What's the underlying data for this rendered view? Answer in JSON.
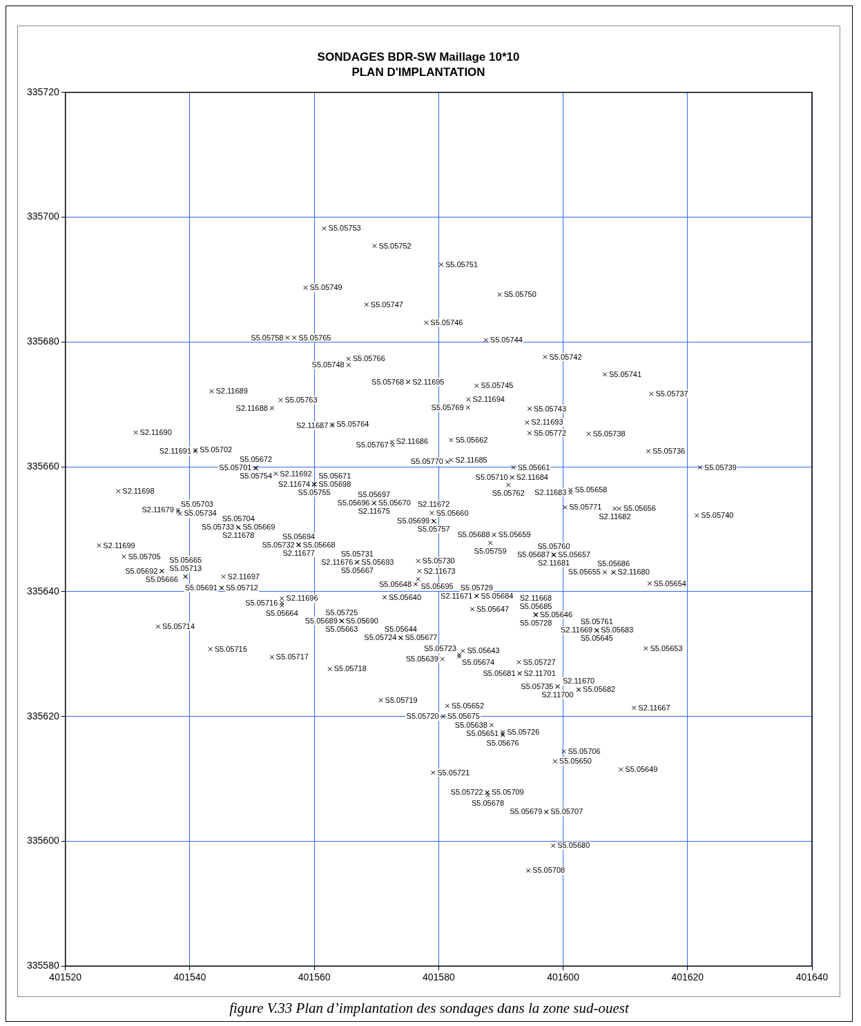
{
  "chart_data": {
    "type": "scatter",
    "title": "SONDAGES BDR-SW Maillage 10*10",
    "subtitle": "PLAN D'IMPLANTATION",
    "xlim": [
      401520,
      401640
    ],
    "xticks": [
      401520,
      401540,
      401560,
      401580,
      401600,
      401620,
      401640
    ],
    "ylim": [
      335580,
      335720
    ],
    "yticks": [
      335580,
      335600,
      335620,
      335640,
      335660,
      335680,
      335700,
      335720
    ],
    "grid": true,
    "marker": "cross",
    "annotations": [
      "figure V.33 Plan d’implantation des sondages dans la zone sud-ouest"
    ],
    "series": [
      {
        "color": "#000000",
        "x": [
          401561.6,
          401569.7,
          401580.4,
          401558.6,
          401589.8,
          401568.4,
          401578.0,
          401555.7,
          401556.8,
          401587.6,
          401597.1,
          401565.5,
          401565.5,
          401575.1,
          401575.1,
          401606.7,
          401543.5,
          401586.1,
          401554.6,
          401614.2,
          401553.2,
          401584.8,
          401584.7,
          401594.6,
          401531.3,
          401562.9,
          401562.9,
          401594.2,
          401594.6,
          401604.1,
          401572.5,
          401572.6,
          401582.0,
          401540.9,
          401540.9,
          401613.7,
          401581.4,
          401582.0,
          401592.0,
          401622.0,
          401550.6,
          401550.6,
          401550.6,
          401553.8,
          401560.0,
          401560.0,
          401560.0,
          401560.0,
          401591.8,
          401591.8,
          401591.2,
          401528.5,
          401601.2,
          401601.2,
          401538.1,
          401538.1,
          401538.4,
          401569.6,
          401569.6,
          401569.6,
          401569.6,
          401600.3,
          401608.3,
          401609.0,
          401578.9,
          401579.2,
          401579.2,
          401579.2,
          401621.5,
          401547.8,
          401547.8,
          401547.8,
          401547.8,
          401588.9,
          401588.9,
          401588.3,
          401557.5,
          401557.5,
          401557.5,
          401557.5,
          401525.4,
          401598.5,
          401598.5,
          401598.5,
          401598.5,
          401529.4,
          401566.9,
          401566.9,
          401566.9,
          401566.9,
          401576.7,
          401576.9,
          401576.7,
          401576.3,
          401535.5,
          401535.5,
          401539.3,
          401539.3,
          401545.4,
          401606.7,
          401608.1,
          401608.1,
          401613.9,
          401545.1,
          401545.1,
          401554.8,
          401554.8,
          401554.8,
          401571.3,
          401586.1,
          401586.1,
          401586.1,
          401585.4,
          401595.6,
          401595.6,
          401595.6,
          401595.6,
          401564.4,
          401564.4,
          401564.4,
          401564.4,
          401605.4,
          401605.4,
          401605.4,
          401605.4,
          401534.9,
          401573.9,
          401573.9,
          401573.9,
          401543.3,
          401553.2,
          401613.3,
          401580.6,
          401583.9,
          401583.3,
          401583.3,
          401592.9,
          401593.0,
          401593.0,
          401562.5,
          401599.1,
          401599.1,
          401602.5,
          401602.5,
          401570.7,
          401581.4,
          401580.7,
          401580.7,
          401611.4,
          401588.5,
          401590.3,
          401590.3,
          401590.3,
          401600.1,
          401598.7,
          401609.3,
          401579.1,
          401587.8,
          401587.8,
          401587.9,
          401597.3,
          401597.3,
          401598.4,
          401594.4
        ],
        "values": [
          335698.2,
          335695.4,
          335692.4,
          335688.7,
          335687.6,
          335686.0,
          335683.1,
          335680.7,
          335680.7,
          335680.3,
          335677.6,
          335677.3,
          335676.3,
          335673.6,
          335673.6,
          335674.8,
          335672.1,
          335673.0,
          335670.7,
          335671.7,
          335669.4,
          335670.8,
          335669.5,
          335669.3,
          335665.5,
          335666.8,
          335666.6,
          335667.1,
          335665.4,
          335665.3,
          335664.0,
          335663.5,
          335664.3,
          335662.7,
          335662.5,
          335662.5,
          335660.8,
          335661.1,
          335659.9,
          335659.9,
          335659.8,
          335659.8,
          335659.8,
          335658.9,
          335657.2,
          335657.2,
          335657.2,
          335657.2,
          335658.3,
          335658.3,
          335657.1,
          335656.1,
          335656.3,
          335655.9,
          335653.1,
          335652.8,
          335652.5,
          335654.2,
          335654.2,
          335654.2,
          335654.2,
          335653.5,
          335653.3,
          335653.3,
          335652.6,
          335651.3,
          335651.3,
          335651.3,
          335652.2,
          335650.3,
          335650.3,
          335650.3,
          335650.3,
          335649.1,
          335649.1,
          335647.8,
          335647.5,
          335647.5,
          335647.5,
          335647.5,
          335647.4,
          335645.9,
          335645.9,
          335645.9,
          335645.9,
          335645.6,
          335644.7,
          335644.7,
          335644.7,
          335644.7,
          335644.9,
          335643.3,
          335642.0,
          335641.2,
          335643.3,
          335643.3,
          335642.4,
          335642.4,
          335642.4,
          335643.1,
          335643.1,
          335643.1,
          335641.3,
          335640.6,
          335640.6,
          335638.9,
          335638.2,
          335637.8,
          335639.1,
          335639.3,
          335639.3,
          335639.3,
          335637.2,
          335636.3,
          335636.3,
          335636.3,
          335636.3,
          335635.3,
          335635.3,
          335635.3,
          335635.3,
          335633.8,
          335633.8,
          335633.8,
          335633.8,
          335634.4,
          335632.6,
          335632.6,
          335632.6,
          335630.8,
          335629.5,
          335630.9,
          335629.2,
          335630.5,
          335629.9,
          335629.6,
          335628.7,
          335626.9,
          335626.9,
          335627.6,
          335624.8,
          335624.8,
          335624.3,
          335624.3,
          335622.6,
          335621.7,
          335620.0,
          335620.0,
          335621.4,
          335618.6,
          335617.5,
          335617.2,
          335617.0,
          335614.4,
          335612.8,
          335611.5,
          335611.0,
          335607.8,
          335607.8,
          335607.4,
          335604.7,
          335604.7,
          335599.3,
          335595.3
        ],
        "value_labels": [
          "S5.05753",
          "S5.05752",
          "S5.05751",
          "S5.05749",
          "S5.05750",
          "S5.05747",
          "S5.05746",
          "S5.05758",
          "S5.05765",
          "S5.05744",
          "S5.05742",
          "S5.05766",
          "S5.05748",
          "S2.11695",
          "S5.05768",
          "S5.05741",
          "S2.11689",
          "S5.05745",
          "S5.05763",
          "S5.05737",
          "S2.11688",
          "S2.11694",
          "S5.05769",
          "S5.05743",
          "S2.11690",
          "S5.05764",
          "S2.11687",
          "S2.11693",
          "S5.05772",
          "S5.05738",
          "S2.11686",
          "S5.05767",
          "S5.05662",
          "S5.05702",
          "S2.11691",
          "S5.05736",
          "S5.05770",
          "S2.11685",
          "S5.05661",
          "S5.05739",
          "S5.05701",
          "S5.05672",
          "S5.05754",
          "S2.11692",
          "S5.05698",
          "S2.11674",
          "S5.05755",
          "S5.05671",
          "S2.11684",
          "S5.05710",
          "S5.05762",
          "S2.11698",
          "S5.05658",
          "S2.11683",
          "S2.11679",
          "S5.05703",
          "S5.05734",
          "S5.05670",
          "S5.05696",
          "S5.05697",
          "S2.11675",
          "S5.05771",
          "S2.11682",
          "S5.05656",
          "S5.05660",
          "S5.05699",
          "S5.05757",
          "S2.11672",
          "S5.05740",
          "S5.05669",
          "S5.05733",
          "S5.05704",
          "S2.11678",
          "S5.05659",
          "S5.05688",
          "S5.05759",
          "S5.05668",
          "S5.05732",
          "S5.05694",
          "S2.11677",
          "S2.11699",
          "S5.05657",
          "S5.05687",
          "S5.05760",
          "S2.11681",
          "S5.05705",
          "S5.05693",
          "S2.11676",
          "S5.05731",
          "S5.05667",
          "S5.05730",
          "S2.11673",
          "S5.05695",
          "S5.05648",
          "S5.05692",
          "S5.05666",
          "S5.05713",
          "S5.05665",
          "S2.11697",
          "S5.05655",
          "S2.11680",
          "S5.05686",
          "S5.05654",
          "S5.05712",
          "S5.05691",
          "S2.11696",
          "S5.05716",
          "S5.05664",
          "S5.05640",
          "S5.05684",
          "S2.11671",
          "S5.05729",
          "S5.05647",
          "S5.05646",
          "S5.05685",
          "S5.05728",
          "S2.11668",
          "S5.05690",
          "S5.05689",
          "S5.05725",
          "S5.05663",
          "S5.05683",
          "S2.11669",
          "S5.05761",
          "S5.05645",
          "S5.05714",
          "S5.05677",
          "S5.05724",
          "S5.05644",
          "S5.05715",
          "S5.05717",
          "S5.05653",
          "S5.05639",
          "S5.05643",
          "S5.05674",
          "S5.05723",
          "S5.05727",
          "S2.11701",
          "S5.05681",
          "S5.05718",
          "S5.05735",
          "S2.11700",
          "S5.05682",
          "S2.11670",
          "S5.05719",
          "S5.05652",
          "S5.05675",
          "S5.05720",
          "S2.11667",
          "S5.05638",
          "S5.05726",
          "S5.05651",
          "S5.05676",
          "S5.05706",
          "S5.05650",
          "S5.05649",
          "S5.05721",
          "S5.05709",
          "S5.05722",
          "S5.05678",
          "S5.05707",
          "S5.05679",
          "S5.05680",
          "S5.05708"
        ]
      }
    ]
  }
}
